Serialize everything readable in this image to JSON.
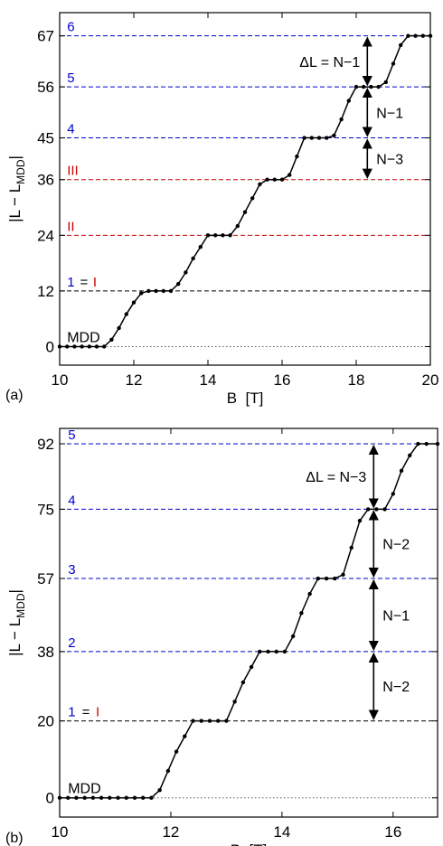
{
  "chart_data": [
    {
      "type": "line",
      "panel_label": "(a)",
      "xlabel": "B  [T]",
      "ylabel": "|L − L",
      "ylabel_sub": "MDD",
      "ylabel_close": "|",
      "xlim": [
        10,
        20
      ],
      "ylim": [
        -4,
        72
      ],
      "xticks": [
        10,
        12,
        14,
        16,
        18,
        20
      ],
      "yticks": [
        0,
        12,
        24,
        36,
        45,
        56,
        67
      ],
      "reference_lines": [
        {
          "y": 0,
          "style": "dotted",
          "color": "#555555"
        },
        {
          "y": 12,
          "style": "dashed",
          "color": "#000000"
        },
        {
          "y": 24,
          "style": "dashed",
          "color": "#cc0000"
        },
        {
          "y": 36,
          "style": "dashed",
          "color": "#cc0000"
        },
        {
          "y": 45,
          "style": "dashed",
          "color": "#0000cc"
        },
        {
          "y": 56,
          "style": "dashed",
          "color": "#0000cc"
        },
        {
          "y": 67,
          "style": "dashed",
          "color": "#0000cc"
        }
      ],
      "level_labels": [
        {
          "text": "MDD",
          "x": 10.2,
          "y": 0,
          "color": "#000000"
        },
        {
          "text": "1",
          "x": 10.2,
          "y": 12,
          "color": "#0000cc"
        },
        {
          "text": "=",
          "x": 10.55,
          "y": 12,
          "color": "#000000"
        },
        {
          "text": "I",
          "x": 10.9,
          "y": 12,
          "color": "#cc0000"
        },
        {
          "text": "II",
          "x": 10.2,
          "y": 24,
          "color": "#cc0000"
        },
        {
          "text": "III",
          "x": 10.2,
          "y": 36,
          "color": "#cc0000"
        },
        {
          "text": "4",
          "x": 10.2,
          "y": 45,
          "color": "#0000cc"
        },
        {
          "text": "5",
          "x": 10.2,
          "y": 56,
          "color": "#0000cc"
        },
        {
          "text": "6",
          "x": 10.2,
          "y": 67,
          "color": "#0000cc"
        }
      ],
      "arrows": [
        {
          "x": 18.3,
          "y1": 36,
          "y2": 45,
          "label": "N−3"
        },
        {
          "x": 18.3,
          "y1": 45,
          "y2": 56,
          "label": "N−1"
        },
        {
          "x": 18.3,
          "y1": 56,
          "y2": 67,
          "label": "ΔL = N−1",
          "label_side": "left"
        }
      ],
      "series": [
        {
          "x": [
            10,
            10.2,
            10.4,
            10.6,
            10.8,
            11.0,
            11.2,
            11.4,
            11.6,
            11.8,
            12.0,
            12.2,
            12.4,
            12.6,
            12.8,
            13.0,
            13.2,
            13.4,
            13.6,
            13.8,
            14.0,
            14.2,
            14.4,
            14.6,
            14.8,
            15.0,
            15.2,
            15.4,
            15.6,
            15.8,
            16.0,
            16.2,
            16.4,
            16.6,
            16.8,
            17.0,
            17.2,
            17.4,
            17.6,
            17.8,
            18.0,
            18.2,
            18.4,
            18.6,
            18.8,
            19.0,
            19.2,
            19.4,
            19.6,
            19.8,
            20.0
          ],
          "y": [
            0,
            0,
            0,
            0,
            0,
            0,
            0,
            1.5,
            4,
            7,
            9.5,
            11.5,
            12,
            12,
            12,
            12,
            13.5,
            16,
            19,
            21.5,
            24,
            24,
            24,
            24,
            26,
            29,
            32,
            35,
            36,
            36,
            36,
            37,
            41,
            45,
            45,
            45,
            45,
            45.5,
            49,
            53,
            56,
            56,
            56,
            56,
            57,
            61,
            65,
            67,
            67,
            67,
            67
          ]
        }
      ]
    },
    {
      "type": "line",
      "panel_label": "(b)",
      "xlabel": "B  [T]",
      "ylabel": "|L − L",
      "ylabel_sub": "MDD",
      "ylabel_close": "|",
      "xlim": [
        10,
        16.8
      ],
      "ylim": [
        -5,
        96
      ],
      "xticks": [
        10,
        12,
        14,
        16
      ],
      "yticks": [
        0,
        20,
        38,
        57,
        75,
        92
      ],
      "reference_lines": [
        {
          "y": 0,
          "style": "dotted",
          "color": "#555555"
        },
        {
          "y": 20,
          "style": "dashed",
          "color": "#000000"
        },
        {
          "y": 38,
          "style": "dashed",
          "color": "#0000cc"
        },
        {
          "y": 57,
          "style": "dashed",
          "color": "#0000cc"
        },
        {
          "y": 75,
          "style": "dashed",
          "color": "#0000cc"
        },
        {
          "y": 92,
          "style": "dashed",
          "color": "#0000cc"
        }
      ],
      "level_labels": [
        {
          "text": "MDD",
          "x": 10.15,
          "y": 0,
          "color": "#000000"
        },
        {
          "text": "1",
          "x": 10.15,
          "y": 20,
          "color": "#0000cc"
        },
        {
          "text": "=",
          "x": 10.4,
          "y": 20,
          "color": "#000000"
        },
        {
          "text": "I",
          "x": 10.65,
          "y": 20,
          "color": "#cc0000"
        },
        {
          "text": "2",
          "x": 10.15,
          "y": 38,
          "color": "#0000cc"
        },
        {
          "text": "3",
          "x": 10.15,
          "y": 57,
          "color": "#0000cc"
        },
        {
          "text": "4",
          "x": 10.15,
          "y": 75,
          "color": "#0000cc"
        },
        {
          "text": "5",
          "x": 10.15,
          "y": 92,
          "color": "#0000cc"
        }
      ],
      "arrows": [
        {
          "x": 15.65,
          "y1": 20,
          "y2": 38,
          "label": "N−2"
        },
        {
          "x": 15.65,
          "y1": 38,
          "y2": 57,
          "label": "N−1"
        },
        {
          "x": 15.65,
          "y1": 57,
          "y2": 75,
          "label": "N−2"
        },
        {
          "x": 15.65,
          "y1": 75,
          "y2": 92,
          "label": "ΔL = N−3",
          "label_side": "left"
        }
      ],
      "series": [
        {
          "x": [
            10,
            10.15,
            10.3,
            10.45,
            10.6,
            10.75,
            10.9,
            11.05,
            11.2,
            11.35,
            11.5,
            11.65,
            11.8,
            11.95,
            12.1,
            12.25,
            12.4,
            12.55,
            12.7,
            12.85,
            13.0,
            13.15,
            13.3,
            13.45,
            13.6,
            13.75,
            13.9,
            14.05,
            14.2,
            14.35,
            14.5,
            14.65,
            14.8,
            14.95,
            15.1,
            15.25,
            15.4,
            15.55,
            15.7,
            15.85,
            16.0,
            16.15,
            16.3,
            16.45,
            16.6,
            16.8
          ],
          "y": [
            0,
            0,
            0,
            0,
            0,
            0,
            0,
            0,
            0,
            0,
            0,
            0,
            2,
            7,
            12,
            16,
            20,
            20,
            20,
            20,
            20,
            25,
            30,
            34,
            38,
            38,
            38,
            38,
            42,
            48,
            53,
            57,
            57,
            57,
            58,
            65,
            72,
            75,
            75,
            75,
            79,
            85,
            89,
            92,
            92,
            92
          ]
        }
      ]
    }
  ]
}
